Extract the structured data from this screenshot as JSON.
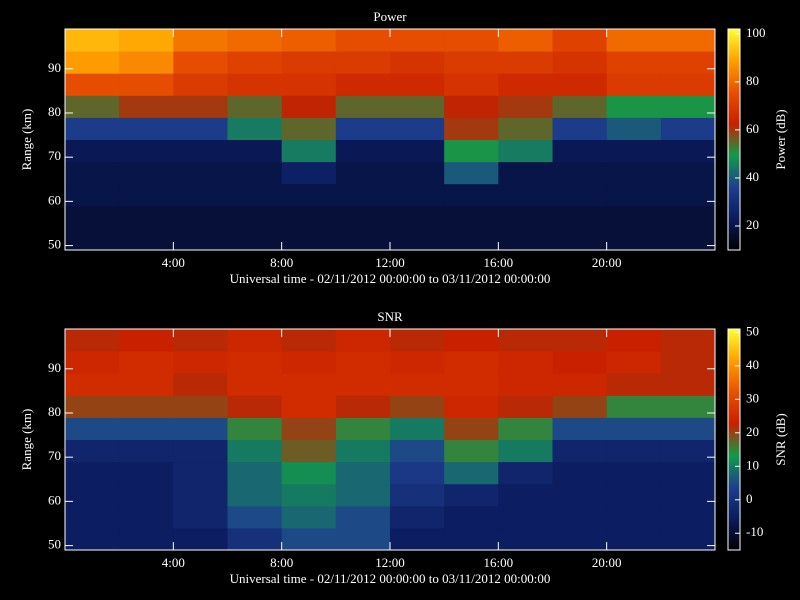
{
  "chart_data": [
    {
      "type": "heatmap",
      "title": "Power",
      "ylabel": "Range (km)",
      "xlabel": "Universal time - 02/11/2012 00:00:00 to 03/11/2012 00:00:00",
      "colorbar_label": "Power (dB)",
      "x_bins": [
        0,
        2,
        4,
        6,
        8,
        10,
        12,
        14,
        16,
        18,
        20,
        22,
        24
      ],
      "y_bins": [
        49,
        54,
        59,
        64,
        69,
        74,
        79,
        84,
        89,
        94,
        99
      ],
      "values": [
        [
          18,
          18,
          18,
          18,
          18,
          18,
          18,
          18,
          18,
          18,
          18,
          18
        ],
        [
          18,
          18,
          18,
          18,
          18,
          18,
          18,
          18,
          18,
          18,
          18,
          18
        ],
        [
          20,
          20,
          20,
          20,
          20,
          20,
          20,
          20,
          20,
          20,
          20,
          20
        ],
        [
          20,
          20,
          20,
          20,
          25,
          20,
          20,
          40,
          20,
          20,
          20,
          20
        ],
        [
          22,
          22,
          22,
          22,
          45,
          22,
          22,
          50,
          45,
          22,
          22,
          22
        ],
        [
          35,
          35,
          35,
          45,
          55,
          35,
          35,
          60,
          55,
          35,
          40,
          35
        ],
        [
          55,
          60,
          60,
          55,
          62,
          55,
          55,
          62,
          60,
          55,
          50,
          50
        ],
        [
          75,
          75,
          70,
          68,
          68,
          65,
          65,
          68,
          65,
          65,
          70,
          70
        ],
        [
          88,
          85,
          75,
          72,
          70,
          70,
          68,
          70,
          70,
          68,
          72,
          72
        ],
        [
          92,
          90,
          82,
          80,
          78,
          75,
          75,
          75,
          78,
          72,
          80,
          80
        ]
      ],
      "xlim": [
        0,
        24
      ],
      "ylim": [
        49,
        99
      ],
      "clim": [
        10,
        102
      ],
      "xticks": [
        {
          "value": 4,
          "label": "4:00"
        },
        {
          "value": 8,
          "label": "8:00"
        },
        {
          "value": 12,
          "label": "12:00"
        },
        {
          "value": 16,
          "label": "16:00"
        },
        {
          "value": 20,
          "label": "20:00"
        }
      ],
      "yticks": [
        50,
        60,
        70,
        80,
        90
      ],
      "cticks": [
        20,
        40,
        60,
        80,
        100
      ],
      "colorscale": [
        "#000000",
        "#0b1b5e",
        "#1e3f8e",
        "#129a4a",
        "#c82000",
        "#e85000",
        "#ffa000",
        "#ffff30"
      ]
    },
    {
      "type": "heatmap",
      "title": "SNR",
      "ylabel": "Range (km)",
      "xlabel": "Universal time - 02/11/2012 00:00:00 to 03/11/2012 00:00:00",
      "colorbar_label": "SNR (dB)",
      "x_bins": [
        0,
        2,
        4,
        6,
        8,
        10,
        12,
        14,
        16,
        18,
        20,
        22,
        24
      ],
      "y_bins": [
        49,
        54,
        59,
        64,
        69,
        74,
        79,
        84,
        89,
        94,
        99
      ],
      "values": [
        [
          -5,
          -5,
          -5,
          0,
          5,
          5,
          -5,
          -5,
          -5,
          -5,
          -5,
          -5
        ],
        [
          -5,
          -5,
          -3,
          5,
          8,
          5,
          -3,
          -5,
          -5,
          -5,
          -5,
          -5
        ],
        [
          -5,
          -5,
          -3,
          8,
          10,
          8,
          0,
          -3,
          -5,
          -5,
          -5,
          -5
        ],
        [
          -5,
          -5,
          -3,
          8,
          12,
          8,
          2,
          8,
          -3,
          -5,
          -5,
          -5
        ],
        [
          -3,
          -3,
          -3,
          10,
          18,
          10,
          5,
          15,
          10,
          -3,
          -3,
          -3
        ],
        [
          5,
          5,
          5,
          15,
          20,
          15,
          10,
          20,
          15,
          5,
          5,
          5
        ],
        [
          20,
          20,
          20,
          22,
          25,
          22,
          20,
          24,
          22,
          20,
          15,
          15
        ],
        [
          25,
          25,
          22,
          25,
          25,
          25,
          25,
          25,
          24,
          24,
          22,
          22
        ],
        [
          24,
          25,
          24,
          25,
          24,
          25,
          24,
          25,
          24,
          23,
          24,
          22
        ],
        [
          22,
          23,
          22,
          24,
          22,
          24,
          22,
          23,
          22,
          22,
          23,
          22
        ]
      ],
      "xlim": [
        0,
        24
      ],
      "ylim": [
        49,
        99
      ],
      "clim": [
        -15,
        51
      ],
      "xticks": [
        {
          "value": 4,
          "label": "4:00"
        },
        {
          "value": 8,
          "label": "8:00"
        },
        {
          "value": 12,
          "label": "12:00"
        },
        {
          "value": 16,
          "label": "16:00"
        },
        {
          "value": 20,
          "label": "20:00"
        }
      ],
      "yticks": [
        50,
        60,
        70,
        80,
        90
      ],
      "cticks": [
        -10,
        0,
        10,
        20,
        30,
        40,
        50
      ],
      "colorscale": [
        "#000000",
        "#0b1b5e",
        "#1e3f8e",
        "#129a4a",
        "#c82000",
        "#e85000",
        "#ffa000",
        "#ffff30"
      ]
    }
  ]
}
